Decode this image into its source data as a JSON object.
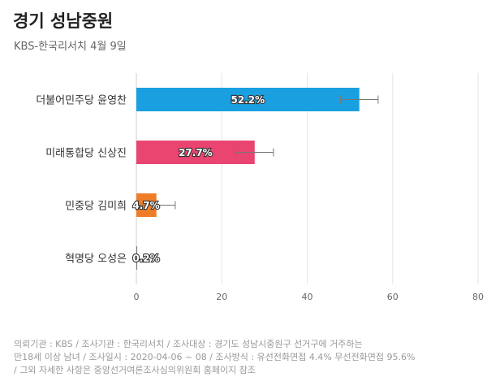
{
  "header": {
    "title": "경기 성남중원",
    "subtitle": "KBS-한국리서치 4월 9일"
  },
  "chart_data": {
    "type": "bar",
    "orientation": "horizontal",
    "categories": [
      "더불어민주당 윤영찬",
      "미래통합당 신상진",
      "민중당 김미희",
      "혁명당 오성은"
    ],
    "values": [
      52.2,
      27.7,
      4.7,
      0.2
    ],
    "value_labels": [
      "52.2%",
      "27.7%",
      "4.7%",
      "0.2%"
    ],
    "error_margin": 4.4,
    "colors": [
      "#1aa0e0",
      "#ea4470",
      "#ef7d28",
      "#7a7a7a"
    ],
    "xlim": [
      0,
      80
    ],
    "xticks": [
      0,
      20,
      40,
      60,
      80
    ],
    "grid": true
  },
  "footer": {
    "lines": [
      "의뢰기관 : KBS / 조사기관 : 한국리서치 / 조사대상 : 경기도 성남시중원구 선거구에 거주하는",
      "만18세 이상 남녀 / 조사일시 : 2020-04-06 ~ 08 / 조사방식 : 유선전화면접 4.4% 무선전화면접 95.6%",
      "/ 그외 자세한 사항은 중앙선거여론조사심의위원회 홈페이지 참조"
    ]
  }
}
